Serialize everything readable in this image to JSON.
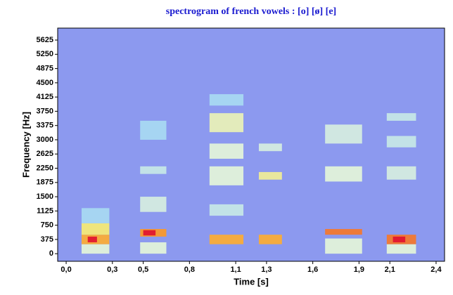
{
  "chart_data": {
    "type": "spectrogram",
    "title": "spectrogram of french vowels : [o] [ø] [e]",
    "x_label": "Time [s]",
    "y_label": "Frequency [Hz]",
    "xlim": [
      -0.055,
      2.455
    ],
    "ylim": [
      -200,
      5940
    ],
    "xticks": [
      {
        "value": 0,
        "label": "0,0"
      },
      {
        "value": 0.3,
        "label": "0,3"
      },
      {
        "value": 0.5,
        "label": "0,5"
      },
      {
        "value": 0.8,
        "label": "0,8"
      },
      {
        "value": 1.1,
        "label": "1,1"
      },
      {
        "value": 1.3,
        "label": "1,3"
      },
      {
        "value": 1.6,
        "label": "1,6"
      },
      {
        "value": 1.9,
        "label": "1,9"
      },
      {
        "value": 2.1,
        "label": "2,1"
      },
      {
        "value": 2.4,
        "label": "2,4"
      }
    ],
    "yticks": [
      0,
      375,
      750,
      1125,
      1500,
      1875,
      2250,
      2625,
      3000,
      3375,
      3750,
      4125,
      4500,
      4875,
      5250,
      5625
    ],
    "background": "#8c99ef",
    "colorscale": [
      "#8c99ef",
      "#a9dcf2",
      "#e6f7d8",
      "#ffe94d",
      "#ff9922",
      "#e01030"
    ],
    "segments": [
      {
        "t": [
          0.1,
          0.28
        ],
        "bands": [
          [
            0,
            250,
            0.4
          ],
          [
            250,
            500,
            0.75
          ],
          [
            500,
            800,
            0.55
          ],
          [
            800,
            1200,
            0.2
          ]
        ]
      },
      {
        "t": [
          0.14,
          0.2
        ],
        "bands": [
          [
            300,
            450,
            1
          ]
        ]
      },
      {
        "t": [
          0.48,
          0.65
        ],
        "bands": [
          [
            0,
            300,
            0.4
          ],
          [
            450,
            650,
            0.8
          ],
          [
            1100,
            1500,
            0.35
          ],
          [
            2100,
            2300,
            0.3
          ],
          [
            3000,
            3500,
            0.2
          ]
        ]
      },
      {
        "t": [
          0.5,
          0.58
        ],
        "bands": [
          [
            480,
            620,
            1
          ]
        ]
      },
      {
        "t": [
          0.93,
          1.15
        ],
        "bands": [
          [
            250,
            500,
            0.75
          ],
          [
            1000,
            1300,
            0.3
          ],
          [
            1800,
            2300,
            0.4
          ],
          [
            2500,
            2900,
            0.4
          ],
          [
            3200,
            3700,
            0.45
          ],
          [
            3900,
            4200,
            0.2
          ]
        ]
      },
      {
        "t": [
          1.25,
          1.4
        ],
        "bands": [
          [
            250,
            500,
            0.75
          ],
          [
            1950,
            2150,
            0.5
          ],
          [
            2700,
            2900,
            0.35
          ]
        ]
      },
      {
        "t": [
          1.68,
          1.92
        ],
        "bands": [
          [
            0,
            400,
            0.4
          ],
          [
            500,
            650,
            0.85
          ],
          [
            1900,
            2300,
            0.4
          ],
          [
            2900,
            3400,
            0.35
          ]
        ]
      },
      {
        "t": [
          2.08,
          2.27
        ],
        "bands": [
          [
            0,
            250,
            0.4
          ],
          [
            250,
            500,
            0.85
          ],
          [
            1950,
            2300,
            0.35
          ],
          [
            2800,
            3100,
            0.3
          ],
          [
            3500,
            3700,
            0.3
          ]
        ]
      },
      {
        "t": [
          2.12,
          2.2
        ],
        "bands": [
          [
            300,
            450,
            1
          ]
        ]
      }
    ]
  }
}
